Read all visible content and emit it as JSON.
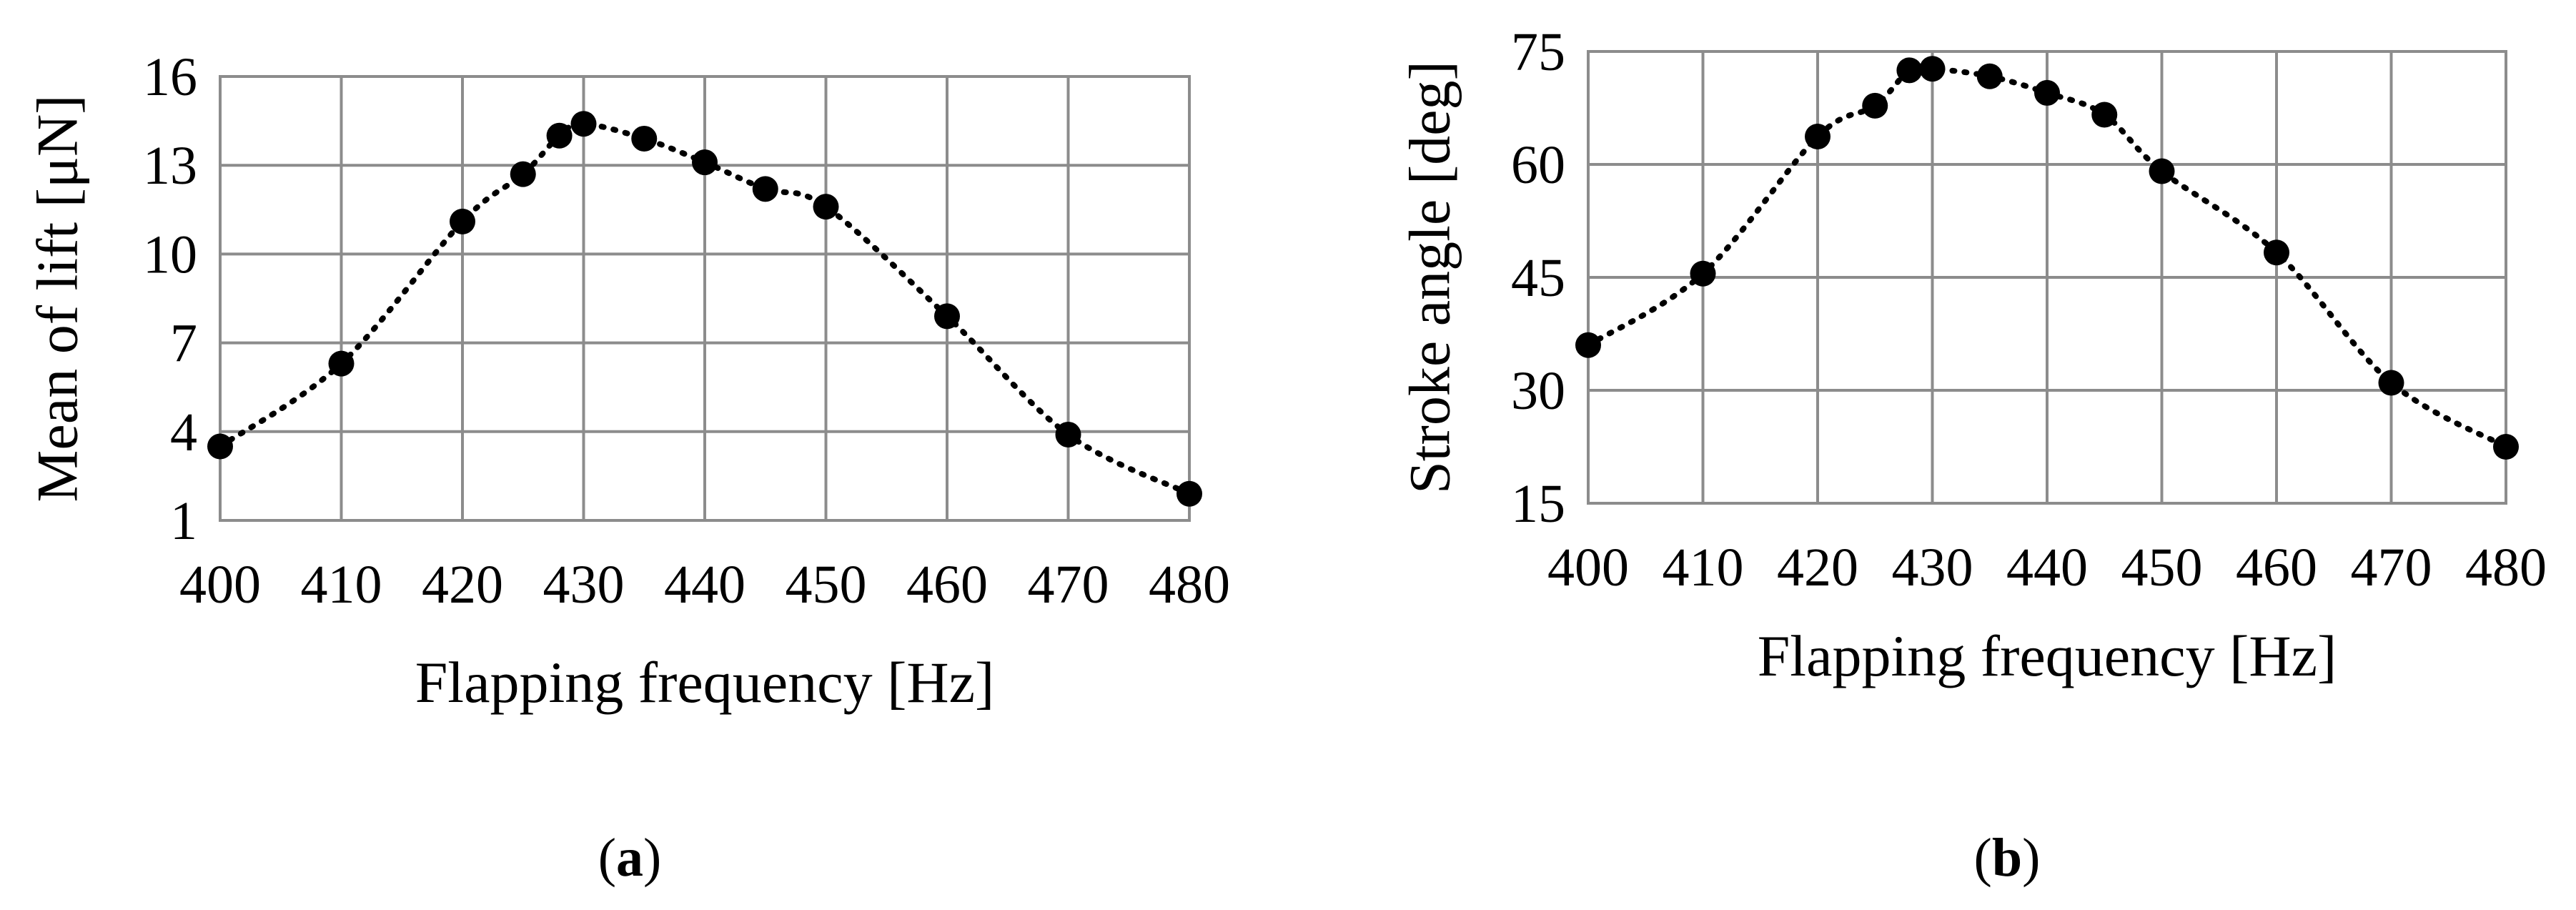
{
  "chart_data": [
    {
      "type": "line",
      "panel": "a",
      "caption": "(a)",
      "caption_letter": "a",
      "xlabel": "Flapping frequency [Hz]",
      "ylabel": "Mean of lift [μN]",
      "xlim": [
        400,
        480
      ],
      "ylim": [
        1,
        16
      ],
      "xticks": [
        400,
        410,
        420,
        430,
        440,
        450,
        460,
        470,
        480
      ],
      "yticks": [
        1,
        4,
        7,
        10,
        13,
        16
      ],
      "grid": true,
      "legend": "none",
      "line_style": "dotted",
      "marker": "circle",
      "series": [
        {
          "x": [
            400,
            410,
            420,
            425,
            428,
            430,
            435,
            440,
            445,
            450,
            460,
            470,
            480
          ],
          "y": [
            3.5,
            6.3,
            11.1,
            12.7,
            14.0,
            14.4,
            13.9,
            13.1,
            12.2,
            11.6,
            7.9,
            3.9,
            1.9
          ]
        }
      ]
    },
    {
      "type": "line",
      "panel": "b",
      "caption": "(b)",
      "caption_letter": "b",
      "xlabel": "Flapping frequency [Hz]",
      "ylabel": "Stroke angle [deg]",
      "xlim": [
        400,
        480
      ],
      "ylim": [
        15,
        75
      ],
      "xticks": [
        400,
        410,
        420,
        430,
        440,
        450,
        460,
        470,
        480
      ],
      "yticks": [
        15,
        30,
        45,
        60,
        75
      ],
      "grid": true,
      "legend": "none",
      "line_style": "dotted",
      "marker": "circle",
      "series": [
        {
          "x": [
            400,
            410,
            420,
            425,
            428,
            430,
            435,
            440,
            445,
            450,
            460,
            470,
            480
          ],
          "y": [
            36.0,
            45.5,
            63.7,
            67.8,
            72.5,
            72.7,
            71.7,
            69.5,
            66.6,
            59.1,
            48.3,
            31.0,
            22.5
          ]
        }
      ]
    }
  ]
}
